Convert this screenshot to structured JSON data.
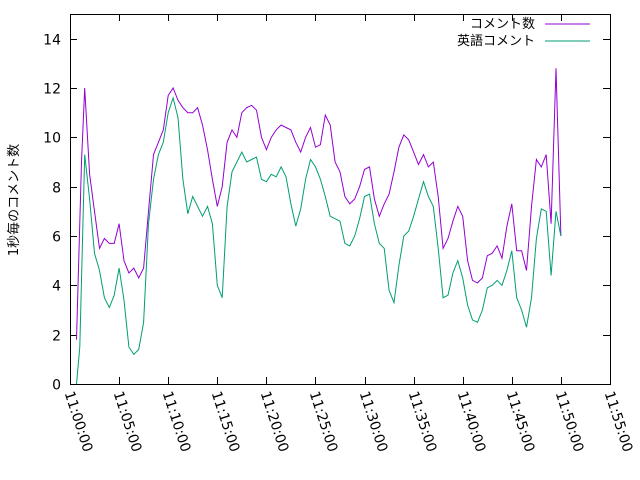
{
  "chart_data": {
    "type": "line",
    "title": "",
    "xlabel": "",
    "ylabel": "1秒毎のコメント数",
    "ylim": [
      0,
      15
    ],
    "yticks": [
      0,
      2,
      4,
      6,
      8,
      10,
      12,
      14
    ],
    "xlim": [
      "11:00:00",
      "11:55:00"
    ],
    "xticks": [
      "11:00:00",
      "11:05:00",
      "11:10:00",
      "11:15:00",
      "11:20:00",
      "11:25:00",
      "11:30:00",
      "11:35:00",
      "11:40:00",
      "11:45:00",
      "11:50:00",
      "11:55:00"
    ],
    "grid": false,
    "legend": "top-right",
    "series": [
      {
        "name": "コメント数",
        "color": "#9400d3",
        "points": [
          [
            "11:00:40",
            1.8
          ],
          [
            "11:01:10",
            9.0
          ],
          [
            "11:01:30",
            12.0
          ],
          [
            "11:02:00",
            8.5
          ],
          [
            "11:02:30",
            7.0
          ],
          [
            "11:03:00",
            5.5
          ],
          [
            "11:03:30",
            5.9
          ],
          [
            "11:04:00",
            5.7
          ],
          [
            "11:04:30",
            5.7
          ],
          [
            "11:05:00",
            6.5
          ],
          [
            "11:05:30",
            5.0
          ],
          [
            "11:06:00",
            4.5
          ],
          [
            "11:06:30",
            4.7
          ],
          [
            "11:07:00",
            4.3
          ],
          [
            "11:07:30",
            4.7
          ],
          [
            "11:08:00",
            7.0
          ],
          [
            "11:08:30",
            9.3
          ],
          [
            "11:09:00",
            9.8
          ],
          [
            "11:09:30",
            10.3
          ],
          [
            "11:10:00",
            11.7
          ],
          [
            "11:10:30",
            12.0
          ],
          [
            "11:11:00",
            11.5
          ],
          [
            "11:11:30",
            11.2
          ],
          [
            "11:12:00",
            11.0
          ],
          [
            "11:12:30",
            11.0
          ],
          [
            "11:13:00",
            11.2
          ],
          [
            "11:13:30",
            10.5
          ],
          [
            "11:14:00",
            9.5
          ],
          [
            "11:14:30",
            8.3
          ],
          [
            "11:15:00",
            7.2
          ],
          [
            "11:15:30",
            8.0
          ],
          [
            "11:16:00",
            9.8
          ],
          [
            "11:16:30",
            10.3
          ],
          [
            "11:17:00",
            10.0
          ],
          [
            "11:17:30",
            11.0
          ],
          [
            "11:18:00",
            11.2
          ],
          [
            "11:18:30",
            11.3
          ],
          [
            "11:19:00",
            11.1
          ],
          [
            "11:19:30",
            10.0
          ],
          [
            "11:20:00",
            9.5
          ],
          [
            "11:20:30",
            10.0
          ],
          [
            "11:21:00",
            10.3
          ],
          [
            "11:21:30",
            10.5
          ],
          [
            "11:22:00",
            10.4
          ],
          [
            "11:22:30",
            10.3
          ],
          [
            "11:23:00",
            9.8
          ],
          [
            "11:23:30",
            9.4
          ],
          [
            "11:24:00",
            10.0
          ],
          [
            "11:24:30",
            10.4
          ],
          [
            "11:25:00",
            9.6
          ],
          [
            "11:25:30",
            9.7
          ],
          [
            "11:26:00",
            10.9
          ],
          [
            "11:26:30",
            10.5
          ],
          [
            "11:27:00",
            9.0
          ],
          [
            "11:27:30",
            8.6
          ],
          [
            "11:28:00",
            7.6
          ],
          [
            "11:28:30",
            7.3
          ],
          [
            "11:29:00",
            7.5
          ],
          [
            "11:29:30",
            8.0
          ],
          [
            "11:30:00",
            8.7
          ],
          [
            "11:30:30",
            8.8
          ],
          [
            "11:31:00",
            7.5
          ],
          [
            "11:31:30",
            6.8
          ],
          [
            "11:32:00",
            7.3
          ],
          [
            "11:32:30",
            7.7
          ],
          [
            "11:33:00",
            8.6
          ],
          [
            "11:33:30",
            9.6
          ],
          [
            "11:34:00",
            10.1
          ],
          [
            "11:34:30",
            9.9
          ],
          [
            "11:35:00",
            9.4
          ],
          [
            "11:35:30",
            8.9
          ],
          [
            "11:36:00",
            9.3
          ],
          [
            "11:36:30",
            8.8
          ],
          [
            "11:37:00",
            9.0
          ],
          [
            "11:37:30",
            7.6
          ],
          [
            "11:38:00",
            5.5
          ],
          [
            "11:38:30",
            5.9
          ],
          [
            "11:39:00",
            6.6
          ],
          [
            "11:39:30",
            7.2
          ],
          [
            "11:40:00",
            6.8
          ],
          [
            "11:40:30",
            5.0
          ],
          [
            "11:41:00",
            4.2
          ],
          [
            "11:41:30",
            4.1
          ],
          [
            "11:42:00",
            4.3
          ],
          [
            "11:42:30",
            5.2
          ],
          [
            "11:43:00",
            5.3
          ],
          [
            "11:43:30",
            5.6
          ],
          [
            "11:44:00",
            5.1
          ],
          [
            "11:44:30",
            6.4
          ],
          [
            "11:45:00",
            7.3
          ],
          [
            "11:45:30",
            5.4
          ],
          [
            "11:46:00",
            5.4
          ],
          [
            "11:46:30",
            4.6
          ],
          [
            "11:47:00",
            7.2
          ],
          [
            "11:47:30",
            9.1
          ],
          [
            "11:48:00",
            8.8
          ],
          [
            "11:48:30",
            9.3
          ],
          [
            "11:49:00",
            6.5
          ],
          [
            "11:49:30",
            12.8
          ],
          [
            "11:50:00",
            6.0
          ]
        ]
      },
      {
        "name": "英語コメント",
        "color": "#009e73",
        "points": [
          [
            "11:00:40",
            0.0
          ],
          [
            "11:01:00",
            1.5
          ],
          [
            "11:01:30",
            9.3
          ],
          [
            "11:02:00",
            7.5
          ],
          [
            "11:02:30",
            5.3
          ],
          [
            "11:03:00",
            4.6
          ],
          [
            "11:03:30",
            3.5
          ],
          [
            "11:04:00",
            3.1
          ],
          [
            "11:04:30",
            3.6
          ],
          [
            "11:05:00",
            4.7
          ],
          [
            "11:05:30",
            3.4
          ],
          [
            "11:06:00",
            1.5
          ],
          [
            "11:06:30",
            1.2
          ],
          [
            "11:07:00",
            1.4
          ],
          [
            "11:07:30",
            2.5
          ],
          [
            "11:08:00",
            6.5
          ],
          [
            "11:08:30",
            8.3
          ],
          [
            "11:09:00",
            9.3
          ],
          [
            "11:09:30",
            9.8
          ],
          [
            "11:10:00",
            11.0
          ],
          [
            "11:10:30",
            11.6
          ],
          [
            "11:11:00",
            10.8
          ],
          [
            "11:11:30",
            8.3
          ],
          [
            "11:12:00",
            6.9
          ],
          [
            "11:12:30",
            7.6
          ],
          [
            "11:13:00",
            7.2
          ],
          [
            "11:13:30",
            6.8
          ],
          [
            "11:14:00",
            7.2
          ],
          [
            "11:14:30",
            6.5
          ],
          [
            "11:15:00",
            4.0
          ],
          [
            "11:15:30",
            3.5
          ],
          [
            "11:16:00",
            7.2
          ],
          [
            "11:16:30",
            8.6
          ],
          [
            "11:17:00",
            9.0
          ],
          [
            "11:17:30",
            9.4
          ],
          [
            "11:18:00",
            9.0
          ],
          [
            "11:18:30",
            9.1
          ],
          [
            "11:19:00",
            9.2
          ],
          [
            "11:19:30",
            8.3
          ],
          [
            "11:20:00",
            8.2
          ],
          [
            "11:20:30",
            8.5
          ],
          [
            "11:21:00",
            8.4
          ],
          [
            "11:21:30",
            8.8
          ],
          [
            "11:22:00",
            8.4
          ],
          [
            "11:22:30",
            7.3
          ],
          [
            "11:23:00",
            6.4
          ],
          [
            "11:23:30",
            7.1
          ],
          [
            "11:24:00",
            8.3
          ],
          [
            "11:24:30",
            9.1
          ],
          [
            "11:25:00",
            8.8
          ],
          [
            "11:25:30",
            8.3
          ],
          [
            "11:26:00",
            7.6
          ],
          [
            "11:26:30",
            6.8
          ],
          [
            "11:27:00",
            6.7
          ],
          [
            "11:27:30",
            6.6
          ],
          [
            "11:28:00",
            5.7
          ],
          [
            "11:28:30",
            5.6
          ],
          [
            "11:29:00",
            6.0
          ],
          [
            "11:29:30",
            6.7
          ],
          [
            "11:30:00",
            7.6
          ],
          [
            "11:30:30",
            7.7
          ],
          [
            "11:31:00",
            6.5
          ],
          [
            "11:31:30",
            5.7
          ],
          [
            "11:32:00",
            5.5
          ],
          [
            "11:32:30",
            3.8
          ],
          [
            "11:33:00",
            3.3
          ],
          [
            "11:33:30",
            4.8
          ],
          [
            "11:34:00",
            6.0
          ],
          [
            "11:34:30",
            6.2
          ],
          [
            "11:35:00",
            6.8
          ],
          [
            "11:35:30",
            7.5
          ],
          [
            "11:36:00",
            8.2
          ],
          [
            "11:36:30",
            7.6
          ],
          [
            "11:37:00",
            7.2
          ],
          [
            "11:37:30",
            5.5
          ],
          [
            "11:38:00",
            3.5
          ],
          [
            "11:38:30",
            3.6
          ],
          [
            "11:39:00",
            4.5
          ],
          [
            "11:39:30",
            5.0
          ],
          [
            "11:40:00",
            4.3
          ],
          [
            "11:40:30",
            3.2
          ],
          [
            "11:41:00",
            2.6
          ],
          [
            "11:41:30",
            2.5
          ],
          [
            "11:42:00",
            3.0
          ],
          [
            "11:42:30",
            3.9
          ],
          [
            "11:43:00",
            4.0
          ],
          [
            "11:43:30",
            4.2
          ],
          [
            "11:44:00",
            4.0
          ],
          [
            "11:44:30",
            4.6
          ],
          [
            "11:45:00",
            5.4
          ],
          [
            "11:45:30",
            3.5
          ],
          [
            "11:46:00",
            3.0
          ],
          [
            "11:46:30",
            2.3
          ],
          [
            "11:47:00",
            3.5
          ],
          [
            "11:47:30",
            5.9
          ],
          [
            "11:48:00",
            7.1
          ],
          [
            "11:48:30",
            7.0
          ],
          [
            "11:49:00",
            4.4
          ],
          [
            "11:49:30",
            7.0
          ],
          [
            "11:50:00",
            6.0
          ]
        ]
      }
    ]
  }
}
